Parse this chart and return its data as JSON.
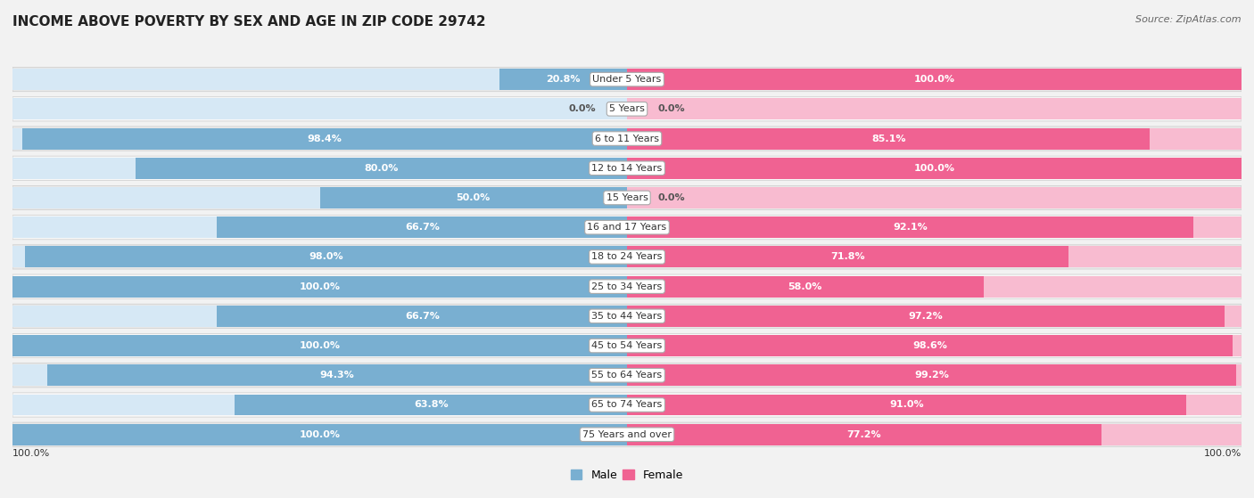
{
  "title": "INCOME ABOVE POVERTY BY SEX AND AGE IN ZIP CODE 29742",
  "source": "Source: ZipAtlas.com",
  "categories": [
    "Under 5 Years",
    "5 Years",
    "6 to 11 Years",
    "12 to 14 Years",
    "15 Years",
    "16 and 17 Years",
    "18 to 24 Years",
    "25 to 34 Years",
    "35 to 44 Years",
    "45 to 54 Years",
    "55 to 64 Years",
    "65 to 74 Years",
    "75 Years and over"
  ],
  "male_values": [
    20.8,
    0.0,
    98.4,
    80.0,
    50.0,
    66.7,
    98.0,
    100.0,
    66.7,
    100.0,
    94.3,
    63.8,
    100.0
  ],
  "female_values": [
    100.0,
    0.0,
    85.1,
    100.0,
    0.0,
    92.1,
    71.8,
    58.0,
    97.2,
    98.6,
    99.2,
    91.0,
    77.2
  ],
  "male_color": "#79afd1",
  "male_bg_color": "#d6e8f5",
  "female_color": "#f06292",
  "female_bg_color": "#f8bbd0",
  "background_color": "#f2f2f2",
  "row_bg_even": "#e8e8e8",
  "row_bg_odd": "#f8f8f8",
  "bar_height": 0.72,
  "label_threshold": 12,
  "label_color_inside_male": "#ffffff",
  "label_color_inside_female": "#ffffff",
  "label_color_outside": "#555555",
  "title_fontsize": 11,
  "label_fontsize": 8,
  "cat_fontsize": 8
}
